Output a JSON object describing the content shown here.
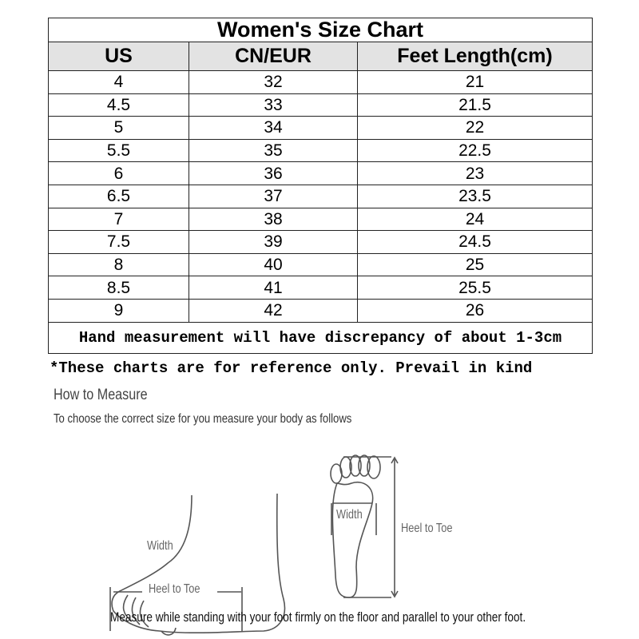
{
  "chart": {
    "title": "Women's Size Chart",
    "columns": [
      "US",
      "CN/EUR",
      "Feet Length(cm)"
    ],
    "rows": [
      [
        "4",
        "32",
        "21"
      ],
      [
        "4.5",
        "33",
        "21.5"
      ],
      [
        "5",
        "34",
        "22"
      ],
      [
        "5.5",
        "35",
        "22.5"
      ],
      [
        "6",
        "36",
        "23"
      ],
      [
        "6.5",
        "37",
        "23.5"
      ],
      [
        "7",
        "38",
        "24"
      ],
      [
        "7.5",
        "39",
        "24.5"
      ],
      [
        "8",
        "40",
        "25"
      ],
      [
        "8.5",
        "41",
        "25.5"
      ],
      [
        "9",
        "42",
        "26"
      ]
    ],
    "footer": "Hand measurement will have discrepancy of about 1-3cm"
  },
  "note": "*These charts are for reference only. Prevail in kind",
  "measure": {
    "heading": "How to Measure",
    "subtitle": "To choose the correct size for you measure your body as follows",
    "side_width_label": "Width",
    "side_length_label": "Heel to Toe",
    "sole_width_label": "Width",
    "sole_length_label": "Heel to Toe",
    "caption": "Measure while standing with your foot firmly on the floor and parallel to your other foot."
  }
}
